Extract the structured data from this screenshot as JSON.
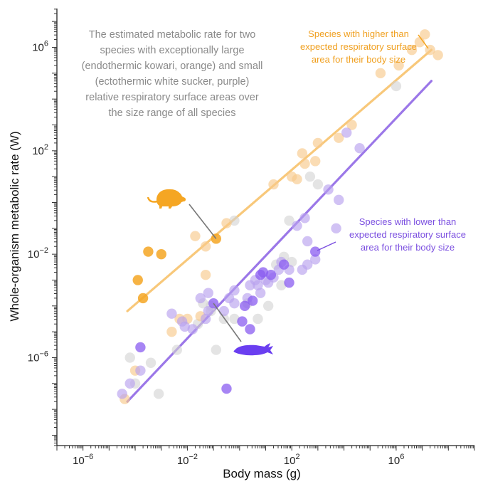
{
  "chart_data": {
    "type": "scatter",
    "title": "",
    "xlabel": "Body mass (g)",
    "ylabel": "Whole-organism metabolic rate (W)",
    "x_scale": "log",
    "y_scale": "log",
    "xlim_log10": [
      -7,
      9
    ],
    "ylim_log10": [
      -9.4,
      7.5
    ],
    "x_ticks": [
      {
        "log10": -6,
        "base": "10",
        "exp": "−6"
      },
      {
        "log10": -2,
        "base": "10",
        "exp": "−2"
      },
      {
        "log10": 2,
        "base": "10",
        "exp": "2"
      },
      {
        "log10": 6,
        "base": "10",
        "exp": "6"
      }
    ],
    "y_ticks": [
      {
        "log10": 6,
        "base": "10",
        "exp": "6"
      },
      {
        "log10": 2,
        "base": "10",
        "exp": "2"
      },
      {
        "log10": -2,
        "base": "10",
        "exp": "−2"
      },
      {
        "log10": -6,
        "base": "10",
        "exp": "−6"
      }
    ],
    "grid": false,
    "colors": {
      "orange": "#f5a623",
      "orange_light": "#f7c98c",
      "purple": "#8a5cf0",
      "purple_light": "#b9a2ee",
      "gray": "#d2d2d2",
      "orange_line": "#f8c87a",
      "purple_line": "#9b77e8"
    },
    "annotations": {
      "main": [
        "The estimated metabolic rate for two",
        "species with exceptionally large",
        "(endothermic kowari, orange) and small",
        "(ectothermic white sucker, purple)",
        "relative respiratory surface areas over",
        "the size range of all species"
      ],
      "higher": [
        "Species with higher than",
        "expected respiratory surface",
        "area for their body size"
      ],
      "lower": [
        "Species with lower than",
        "expected respiratory surface",
        "area for their body size"
      ]
    },
    "trend_lines": [
      {
        "group": "higher",
        "x_log10": [
          -4.3,
          7.35
        ],
        "y_log10": [
          -4.2,
          5.9
        ]
      },
      {
        "group": "lower",
        "x_log10": [
          -4.3,
          7.35
        ],
        "y_log10": [
          -7.7,
          4.7
        ]
      }
    ],
    "series": [
      {
        "group": "higher-highlight",
        "points_log10": [
          [
            -0.9,
            -1.4
          ],
          [
            -3.5,
            -1.9
          ],
          [
            -3.0,
            -2.0
          ],
          [
            -3.9,
            -3.0
          ],
          [
            -3.7,
            -3.7
          ]
        ]
      },
      {
        "group": "higher",
        "points_log10": [
          [
            -4.4,
            -7.6
          ],
          [
            -4.0,
            -6.5
          ],
          [
            -2.6,
            -5.0
          ],
          [
            -2.3,
            -4.5
          ],
          [
            -1.5,
            -4.4
          ],
          [
            -2.0,
            -4.5
          ],
          [
            -1.3,
            -1.7
          ],
          [
            -1.7,
            -1.3
          ],
          [
            -1.3,
            -2.8
          ],
          [
            -0.5,
            -0.8
          ],
          [
            1.3,
            0.7
          ],
          [
            2.2,
            0.9
          ],
          [
            2.0,
            1.0
          ],
          [
            2.5,
            1.5
          ],
          [
            2.4,
            1.9
          ],
          [
            2.9,
            1.6
          ],
          [
            3.0,
            2.3
          ],
          [
            3.8,
            2.5
          ],
          [
            4.3,
            3.0
          ],
          [
            7.6,
            5.7
          ],
          [
            7.3,
            5.9
          ],
          [
            7.1,
            6.5
          ],
          [
            6.6,
            5.9
          ],
          [
            6.9,
            6.2
          ],
          [
            6.1,
            5.3
          ],
          [
            5.4,
            5.0
          ]
        ]
      },
      {
        "group": "lower-highlight",
        "points_log10": [
          [
            -1.0,
            -3.9
          ],
          [
            0.1,
            -4.6
          ],
          [
            -3.8,
            -5.6
          ],
          [
            -0.5,
            -7.2
          ],
          [
            0.2,
            -4.0
          ],
          [
            0.5,
            -3.8
          ],
          [
            0.4,
            -4.9
          ],
          [
            0.9,
            -2.7
          ],
          [
            0.8,
            -2.8
          ],
          [
            1.9,
            -3.1
          ],
          [
            1.2,
            -2.8
          ],
          [
            1.7,
            -2.4
          ],
          [
            2.9,
            -1.9
          ]
        ]
      },
      {
        "group": "lower",
        "points_log10": [
          [
            -4.5,
            -7.4
          ],
          [
            -4.2,
            -7.0
          ],
          [
            -3.8,
            -6.5
          ],
          [
            -2.6,
            -4.3
          ],
          [
            -2.2,
            -4.6
          ],
          [
            -2.1,
            -4.8
          ],
          [
            -1.8,
            -4.9
          ],
          [
            -1.5,
            -3.7
          ],
          [
            -1.3,
            -4.5
          ],
          [
            -1.2,
            -4.2
          ],
          [
            -1.2,
            -3.5
          ],
          [
            -0.4,
            -3.7
          ],
          [
            -0.6,
            -4.2
          ],
          [
            -0.2,
            -3.4
          ],
          [
            -0.2,
            -3.9
          ],
          [
            0.3,
            -3.7
          ],
          [
            0.4,
            -3.2
          ],
          [
            0.6,
            -3.0
          ],
          [
            0.7,
            -3.2
          ],
          [
            0.8,
            -3.5
          ],
          [
            1.0,
            -3.0
          ],
          [
            1.1,
            -3.1
          ],
          [
            1.3,
            -2.9
          ],
          [
            1.5,
            -2.6
          ],
          [
            1.6,
            -2.3
          ],
          [
            1.9,
            -2.6
          ],
          [
            2.4,
            -2.6
          ],
          [
            2.6,
            -2.4
          ],
          [
            2.9,
            -2.2
          ],
          [
            2.6,
            -1.5
          ],
          [
            2.5,
            -0.6
          ],
          [
            2.2,
            -0.9
          ],
          [
            3.4,
            0.5
          ],
          [
            3.8,
            0.1
          ],
          [
            4.1,
            2.7
          ],
          [
            4.6,
            2.1
          ],
          [
            3.7,
            -1.0
          ]
        ]
      },
      {
        "group": "other",
        "points_log10": [
          [
            -4.2,
            -6.0
          ],
          [
            -4.0,
            -7.0
          ],
          [
            -3.4,
            -6.2
          ],
          [
            -3.1,
            -7.4
          ],
          [
            -2.4,
            -5.7
          ],
          [
            -1.6,
            -4.7
          ],
          [
            -0.9,
            -5.7
          ],
          [
            -1.1,
            -4.2
          ],
          [
            -0.2,
            -0.7
          ],
          [
            -1.4,
            -3.9
          ],
          [
            -1.1,
            -4.0
          ],
          [
            -0.6,
            -4.5
          ],
          [
            -0.2,
            -4.5
          ],
          [
            0.3,
            -3.9
          ],
          [
            0.7,
            -4.5
          ],
          [
            1.1,
            -4.0
          ],
          [
            1.6,
            -3.2
          ],
          [
            1.4,
            -2.4
          ],
          [
            1.7,
            -2.1
          ],
          [
            2.0,
            -2.3
          ],
          [
            3.0,
            0.7
          ],
          [
            2.7,
            1.0
          ],
          [
            1.9,
            -0.7
          ],
          [
            6.0,
            4.5
          ]
        ]
      }
    ]
  }
}
